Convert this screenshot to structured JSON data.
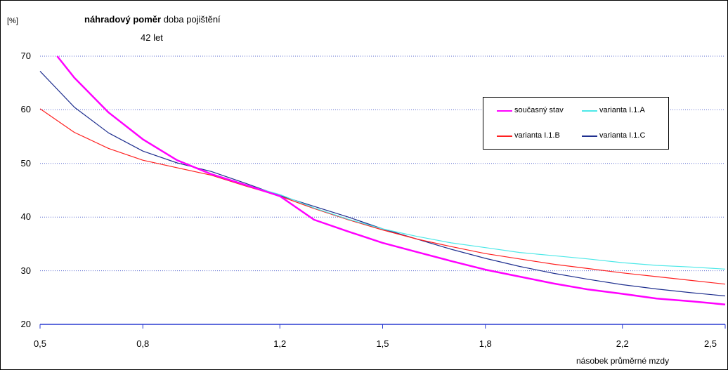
{
  "chart_data": {
    "type": "line",
    "title_bold": "náhradový poměr",
    "title_rest": " doba pojištění",
    "subtitle": "42 let",
    "y_unit_label": "[%]",
    "xlabel": "násobek průměrné mzdy",
    "xlim": [
      0.5,
      2.5
    ],
    "ylim": [
      20,
      70
    ],
    "x_ticks": [
      "0,5",
      "0,8",
      "1,2",
      "1,5",
      "1,8",
      "2,2",
      "2,5"
    ],
    "y_ticks": [
      "20",
      "30",
      "40",
      "50",
      "60",
      "70"
    ],
    "grid": "horizontal dotted",
    "legend_position": "upper-right",
    "series": [
      {
        "name": "současný stav",
        "color": "#ff00ff",
        "x": [
          0.55,
          0.6,
          0.7,
          0.8,
          0.9,
          1.0,
          1.1,
          1.2,
          1.3,
          1.4,
          1.5,
          1.6,
          1.7,
          1.8,
          1.9,
          2.0,
          2.1,
          2.2,
          2.3,
          2.4,
          2.5
        ],
        "y": [
          70.0,
          66.0,
          59.5,
          54.5,
          50.6,
          48.0,
          46.0,
          43.9,
          39.5,
          37.3,
          35.2,
          33.5,
          31.8,
          30.2,
          28.9,
          27.6,
          26.5,
          25.7,
          24.8,
          24.3,
          23.7
        ]
      },
      {
        "name": "varianta I.1.A",
        "color": "#4de8e8",
        "x": [
          0.55,
          0.6,
          0.7,
          0.8,
          0.9,
          1.0,
          1.1,
          1.2,
          1.3,
          1.4,
          1.5,
          1.6,
          1.7,
          1.8,
          1.9,
          2.0,
          2.1,
          2.2,
          2.3,
          2.4,
          2.5
        ],
        "y": [
          70.0,
          66.0,
          59.5,
          54.5,
          50.6,
          48.0,
          46.0,
          44.2,
          41.7,
          39.6,
          37.8,
          36.4,
          35.2,
          34.3,
          33.4,
          32.8,
          32.2,
          31.5,
          31.0,
          30.7,
          30.3
        ]
      },
      {
        "name": "varianta I.1.B",
        "color": "#ff2020",
        "x": [
          0.5,
          0.6,
          0.7,
          0.8,
          0.9,
          1.0,
          1.1,
          1.2,
          1.3,
          1.4,
          1.5,
          1.6,
          1.7,
          1.8,
          1.9,
          2.0,
          2.1,
          2.2,
          2.3,
          2.4,
          2.5
        ],
        "y": [
          60.2,
          55.8,
          52.8,
          50.6,
          49.2,
          47.8,
          45.8,
          43.9,
          41.6,
          39.5,
          37.6,
          35.9,
          34.5,
          33.2,
          32.2,
          31.2,
          30.4,
          29.6,
          28.9,
          28.2,
          27.5
        ]
      },
      {
        "name": "varianta I.1.C",
        "color": "#1f2f8f",
        "x": [
          0.5,
          0.6,
          0.7,
          0.8,
          0.9,
          1.0,
          1.1,
          1.2,
          1.3,
          1.4,
          1.5,
          1.6,
          1.7,
          1.8,
          1.9,
          2.0,
          2.1,
          2.2,
          2.3,
          2.4,
          2.5
        ],
        "y": [
          67.2,
          60.5,
          55.7,
          52.3,
          50.1,
          48.5,
          46.3,
          44.0,
          42.0,
          40.0,
          37.8,
          35.9,
          34.0,
          32.3,
          30.8,
          29.5,
          28.4,
          27.4,
          26.6,
          25.9,
          25.3
        ]
      }
    ]
  }
}
